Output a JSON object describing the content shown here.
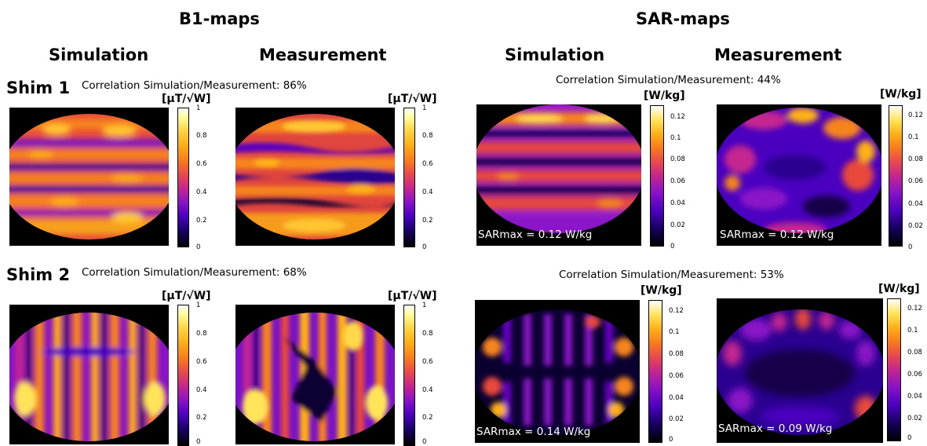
{
  "sections": {
    "b1": "B1-maps",
    "sar": "SAR-maps"
  },
  "columns": {
    "sim": "Simulation",
    "meas": "Measurement"
  },
  "shims": {
    "shim1": "Shim 1",
    "shim2": "Shim 2"
  },
  "correlations": {
    "b1_shim1": "Correlation Simulation/Measurement: 86%",
    "b1_shim2": "Correlation Simulation/Measurement: 68%",
    "sar_shim1": "Correlation Simulation/Measurement: 44%",
    "sar_shim2": "Correlation Simulation/Measurement: 53%"
  },
  "units": {
    "b1": "[μT/√W]",
    "sar": "[W/kg]"
  },
  "b1_ticks": [
    "1",
    "0.8",
    "0.6",
    "0.4",
    "0.2",
    "0"
  ],
  "sar_ticks": [
    "0.12",
    "0.1",
    "0.08",
    "0.06",
    "0.04",
    "0.02",
    "0"
  ],
  "sarmax": {
    "shim1_sim": "SARmax = 0.12 W/kg",
    "shim1_meas": "SARmax = 0.12 W/kg",
    "shim2_sim": "SARmax = 0.14 W/kg",
    "shim2_meas": "SARmax = 0.09 W/kg"
  },
  "colors": {
    "hot": "#fdb116",
    "mid": "#e8484f",
    "cool": "#4b00c0",
    "bg": "#000000"
  }
}
